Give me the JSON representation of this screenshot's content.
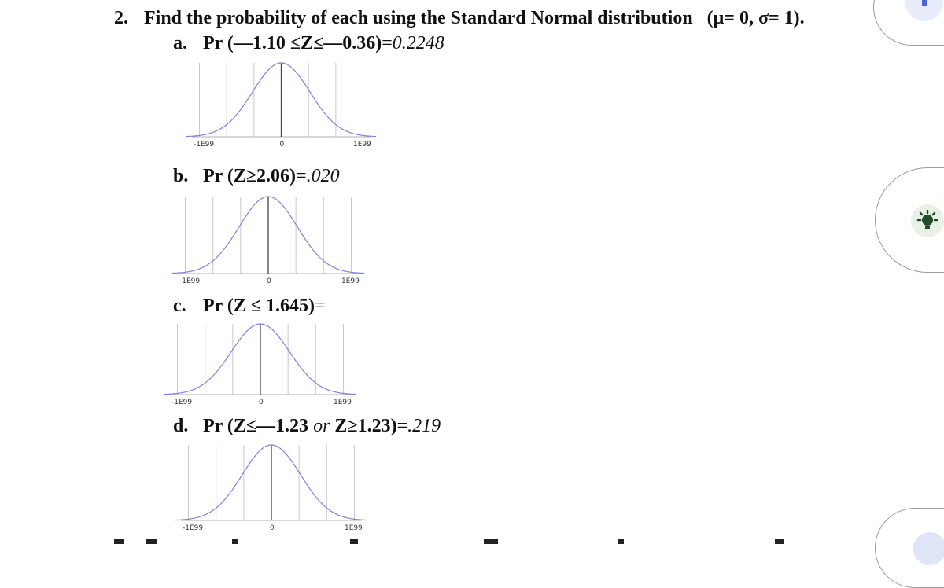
{
  "question": {
    "number": "2.",
    "text": "Find the probability of each using the Standard Normal distribution",
    "params": "(μ= 0,  σ= 1)."
  },
  "parts": [
    {
      "letter": "a.",
      "expr": "Pr (—1.10 ≤Z≤—0.36)",
      "eq": "=",
      "answer": "0.2248",
      "graph": {
        "left_label": "-1E99",
        "center_label": "0",
        "right_label": "1E99"
      }
    },
    {
      "letter": "b.",
      "expr": "Pr (Z≥2.06)",
      "eq": "=",
      "answer": ".020",
      "graph": {
        "left_label": "-1E99",
        "center_label": "0",
        "right_label": "1E99"
      }
    },
    {
      "letter": "c.",
      "expr": "Pr (Z  ≤ 1.645)",
      "eq": "=",
      "answer": "",
      "graph": {
        "left_label": "-1E99",
        "center_label": "0",
        "right_label": "1E99"
      }
    },
    {
      "letter": "d.",
      "expr_a": "Pr (Z≤—1.23",
      "or": "or",
      "expr_b": "Z≥1.23)",
      "eq": "=",
      "answer": ".219",
      "graph": {
        "left_label": "-1E99",
        "center_label": "0",
        "right_label": "1E99"
      }
    }
  ],
  "side_tabs": [
    {
      "icon": "square-icon",
      "color": "#4b63d8"
    },
    {
      "icon": "lightbulb-icon",
      "color": "#1f4d2a"
    },
    {
      "icon": "tab-icon",
      "color": "#dfe4f7"
    }
  ],
  "colors": {
    "curve": "#8080e0",
    "text": "#111111",
    "grid": "#c8c8c8"
  }
}
